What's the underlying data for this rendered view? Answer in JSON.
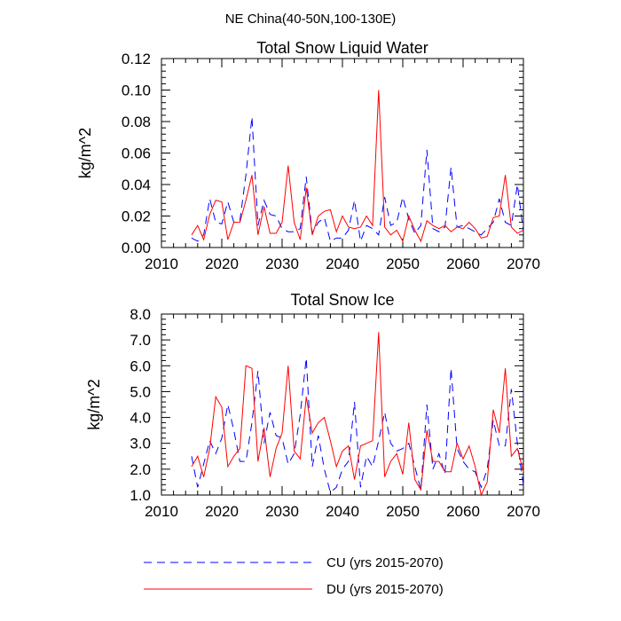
{
  "figure_title": "NE China(40-50N,100-130E)",
  "legend": [
    {
      "label": "CU (yrs 2015-2070)",
      "color": "#0000ff",
      "dash": "dashed"
    },
    {
      "label": "DU (yrs 2015-2070)",
      "color": "#ff0000",
      "dash": "solid"
    }
  ],
  "chart_data": [
    {
      "type": "line",
      "title": "Total Snow Liquid Water",
      "xlabel": "",
      "ylabel": "kg/m^2",
      "xlim": [
        2010,
        2070
      ],
      "ylim": [
        0.0,
        0.12
      ],
      "xticks": [
        2010,
        2020,
        2030,
        2040,
        2050,
        2060,
        2070
      ],
      "yticks": [
        0.0,
        0.02,
        0.04,
        0.06,
        0.08,
        0.1,
        0.12
      ],
      "ytick_labels": [
        "0.00",
        "0.02",
        "0.04",
        "0.06",
        "0.08",
        "0.10",
        "0.12"
      ],
      "x": [
        2015,
        2016,
        2017,
        2018,
        2019,
        2020,
        2021,
        2022,
        2023,
        2024,
        2025,
        2026,
        2027,
        2028,
        2029,
        2030,
        2031,
        2032,
        2033,
        2034,
        2035,
        2036,
        2037,
        2038,
        2039,
        2040,
        2041,
        2042,
        2043,
        2044,
        2045,
        2046,
        2047,
        2048,
        2049,
        2050,
        2051,
        2052,
        2053,
        2054,
        2055,
        2056,
        2057,
        2058,
        2059,
        2060,
        2061,
        2062,
        2063,
        2064,
        2065,
        2066,
        2067,
        2068,
        2069,
        2070
      ],
      "series": [
        {
          "name": "CU (yrs 2015-2070)",
          "color": "#0000ff",
          "dash": "dashed",
          "values": [
            0.006,
            0.004,
            0.008,
            0.031,
            0.016,
            0.015,
            0.029,
            0.016,
            0.017,
            0.046,
            0.083,
            0.014,
            0.03,
            0.021,
            0.02,
            0.012,
            0.01,
            0.01,
            0.012,
            0.045,
            0.009,
            0.016,
            0.019,
            0.004,
            0.006,
            0.006,
            0.011,
            0.03,
            0.004,
            0.014,
            0.012,
            0.008,
            0.032,
            0.014,
            0.016,
            0.032,
            0.018,
            0.009,
            0.014,
            0.062,
            0.012,
            0.01,
            0.013,
            0.051,
            0.013,
            0.014,
            0.012,
            0.01,
            0.008,
            0.012,
            0.016,
            0.031,
            0.016,
            0.014,
            0.04,
            0.01
          ]
        },
        {
          "name": "DU (yrs 2015-2070)",
          "color": "#ff0000",
          "dash": "solid",
          "values": [
            0.008,
            0.014,
            0.005,
            0.021,
            0.03,
            0.029,
            0.005,
            0.016,
            0.016,
            0.03,
            0.046,
            0.008,
            0.026,
            0.009,
            0.009,
            0.016,
            0.052,
            0.016,
            0.005,
            0.038,
            0.008,
            0.02,
            0.023,
            0.024,
            0.01,
            0.02,
            0.013,
            0.012,
            0.013,
            0.02,
            0.014,
            0.1,
            0.013,
            0.008,
            0.011,
            0.004,
            0.02,
            0.011,
            0.004,
            0.017,
            0.014,
            0.012,
            0.014,
            0.01,
            0.013,
            0.012,
            0.016,
            0.012,
            0.006,
            0.007,
            0.019,
            0.02,
            0.046,
            0.013,
            0.009,
            0.011
          ]
        }
      ]
    },
    {
      "type": "line",
      "title": "Total Snow Ice",
      "xlabel": "",
      "ylabel": "kg/m^2",
      "xlim": [
        2010,
        2070
      ],
      "ylim": [
        1.0,
        8.0
      ],
      "xticks": [
        2010,
        2020,
        2030,
        2040,
        2050,
        2060,
        2070
      ],
      "yticks": [
        1.0,
        2.0,
        3.0,
        4.0,
        5.0,
        6.0,
        7.0,
        8.0
      ],
      "ytick_labels": [
        "1.0",
        "2.0",
        "3.0",
        "4.0",
        "5.0",
        "6.0",
        "7.0",
        "8.0"
      ],
      "x": [
        2015,
        2016,
        2017,
        2018,
        2019,
        2020,
        2021,
        2022,
        2023,
        2024,
        2025,
        2026,
        2027,
        2028,
        2029,
        2030,
        2031,
        2032,
        2033,
        2034,
        2035,
        2036,
        2037,
        2038,
        2039,
        2040,
        2041,
        2042,
        2043,
        2044,
        2045,
        2046,
        2047,
        2048,
        2049,
        2050,
        2051,
        2052,
        2053,
        2054,
        2055,
        2056,
        2057,
        2058,
        2059,
        2060,
        2061,
        2062,
        2063,
        2064,
        2065,
        2066,
        2067,
        2068,
        2069,
        2070
      ],
      "series": [
        {
          "name": "CU (yrs 2015-2070)",
          "color": "#0000ff",
          "dash": "dashed",
          "values": [
            2.5,
            1.3,
            2.2,
            3.1,
            2.6,
            3.2,
            4.5,
            3.5,
            2.3,
            2.3,
            3.8,
            5.8,
            3.0,
            4.2,
            3.3,
            3.2,
            2.2,
            2.6,
            4.1,
            6.3,
            2.1,
            3.3,
            2.0,
            1.1,
            1.3,
            2.0,
            2.3,
            4.6,
            1.3,
            2.5,
            2.1,
            3.1,
            4.2,
            3.0,
            2.7,
            2.8,
            3.0,
            2.1,
            1.2,
            4.5,
            2.0,
            2.6,
            1.8,
            5.9,
            2.8,
            2.3,
            2.0,
            1.9,
            1.3,
            2.0,
            3.9,
            2.9,
            2.9,
            5.1,
            3.0,
            1.4
          ]
        },
        {
          "name": "DU (yrs 2015-2070)",
          "color": "#ff0000",
          "dash": "solid",
          "values": [
            2.1,
            2.5,
            1.7,
            2.8,
            4.8,
            4.4,
            2.1,
            2.5,
            2.8,
            6.0,
            5.9,
            2.3,
            3.6,
            1.7,
            2.8,
            3.4,
            6.0,
            2.7,
            2.4,
            4.8,
            3.4,
            3.8,
            4.0,
            3.1,
            2.1,
            2.7,
            2.9,
            1.6,
            2.9,
            3.0,
            3.1,
            7.3,
            1.7,
            2.3,
            2.6,
            1.8,
            3.8,
            1.6,
            1.2,
            3.5,
            2.3,
            2.3,
            1.9,
            1.9,
            3.0,
            2.4,
            2.9,
            2.1,
            1.0,
            1.5,
            4.3,
            3.4,
            5.9,
            2.5,
            2.8,
            1.9
          ]
        }
      ]
    }
  ]
}
